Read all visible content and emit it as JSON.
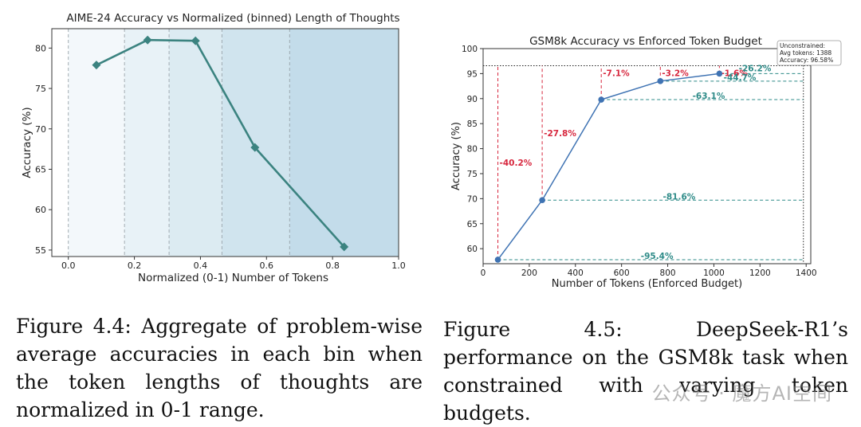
{
  "chart_data": [
    {
      "type": "line",
      "title": "AIME-24 Accuracy vs Normalized (binned) Length of Thoughts",
      "xlabel": "Normalized (0-1) Number of Tokens",
      "ylabel": "Accuracy (%)",
      "xlim": [
        -0.05,
        1.0
      ],
      "ylim": [
        54.2,
        82.4
      ],
      "x_ticks": [
        "0.0",
        "0.2",
        "0.4",
        "0.6",
        "0.8",
        "1.0"
      ],
      "y_ticks": [
        "55",
        "60",
        "65",
        "70",
        "75",
        "80"
      ],
      "bin_edges": [
        0.0,
        0.17,
        0.305,
        0.465,
        0.67,
        1.0
      ],
      "bin_colors": [
        "#f3f8fb",
        "#e8f2f7",
        "#dcebf2",
        "#d0e4ee",
        "#c3dcea"
      ],
      "x": [
        0.085,
        0.24,
        0.385,
        0.565,
        0.835
      ],
      "y": [
        77.9,
        81.0,
        80.9,
        67.7,
        55.4
      ],
      "color": "#3b8380",
      "grid": false
    },
    {
      "type": "line",
      "title": "GSM8k Accuracy vs Enforced Token Budget",
      "xlabel": "Number of Tokens (Enforced Budget)",
      "ylabel": "Accuracy (%)",
      "xlim": [
        0,
        1420
      ],
      "ylim": [
        57,
        100
      ],
      "x_ticks": [
        "0",
        "200",
        "400",
        "600",
        "800",
        "1000",
        "1200",
        "1400"
      ],
      "y_ticks": [
        "60",
        "65",
        "70",
        "75",
        "80",
        "85",
        "90",
        "95",
        "100"
      ],
      "x": [
        64,
        256,
        512,
        768,
        1024
      ],
      "y": [
        57.8,
        69.7,
        89.8,
        93.5,
        95.0
      ],
      "color": "#3f73b3",
      "unconstrained": {
        "x": 1388,
        "y": 96.58
      },
      "legend_lines": [
        "Unconstrained:",
        "Avg tokens: 1388",
        "Accuracy: 96.58%"
      ],
      "acc_drop_labels": [
        "-40.2%",
        "-27.8%",
        "-7.1%",
        "-3.2%",
        "-1.6%"
      ],
      "token_drop_labels": [
        "-95.4%",
        "-81.6%",
        "-63.1%",
        "-44.7%",
        "-26.2%"
      ],
      "red_color": "#d7263d",
      "teal_color": "#2e8b88",
      "grid": false
    }
  ],
  "captions": {
    "left": "Figure 4.4: Aggregate of problem-wise average accuracies in each bin when the token lengths of thoughts are normalized in 0-1 range.",
    "right": "Figure 4.5: DeepSeek-R1’s performance on the GSM8k task when constrained with varying token budgets."
  },
  "watermark": "公众号 · 魔方AI空间"
}
